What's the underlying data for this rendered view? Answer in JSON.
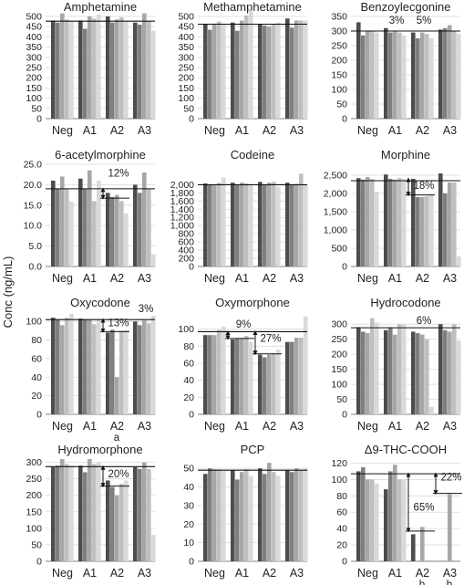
{
  "figure": {
    "ylabel": "Conc (ng/mL)"
  },
  "colors": {
    "shades": [
      "#4d4d4d",
      "#7f7f7f",
      "#a6a6a6",
      "#bfbfbf",
      "#d9d9d9"
    ]
  },
  "chart_data": [
    {
      "type": "bar",
      "title": "Amphetamine",
      "categories": [
        "Neg",
        "A1",
        "A2",
        "A3"
      ],
      "ylim": [
        0,
        500
      ],
      "yticks": [
        "0",
        "50",
        "100",
        "150",
        "200",
        "250",
        "300",
        "350",
        "400",
        "450",
        "500"
      ],
      "ref_line": 477,
      "values": [
        [
          480,
          470,
          515,
          485,
          480
        ],
        [
          480,
          440,
          500,
          490,
          510
        ],
        [
          500,
          470,
          485,
          495,
          475
        ],
        [
          470,
          460,
          515,
          475,
          430
        ]
      ],
      "annotations": []
    },
    {
      "type": "bar",
      "title": "Methamphetamine",
      "categories": [
        "Neg",
        "A1",
        "A2",
        "A3"
      ],
      "ylim": [
        0,
        500
      ],
      "yticks": [
        "0",
        "50",
        "100",
        "150",
        "200",
        "250",
        "300",
        "350",
        "400",
        "450",
        "500"
      ],
      "ref_line": 462,
      "values": [
        [
          460,
          435,
          465,
          475,
          465
        ],
        [
          470,
          430,
          480,
          505,
          530
        ],
        [
          460,
          455,
          450,
          460,
          470
        ],
        [
          490,
          445,
          480,
          480,
          480
        ]
      ],
      "annotations": []
    },
    {
      "type": "bar",
      "title": "Benzoylecgonine",
      "categories": [
        "Neg",
        "A1",
        "A2",
        "A3"
      ],
      "ylim": [
        0,
        350
      ],
      "yticks": [
        "0",
        "50",
        "100",
        "150",
        "200",
        "250",
        "300",
        "350"
      ],
      "ref_line": 300,
      "values": [
        [
          330,
          285,
          300,
          300,
          295
        ],
        [
          310,
          295,
          300,
          295,
          285
        ],
        [
          295,
          275,
          295,
          290,
          275
        ],
        [
          305,
          310,
          320,
          300,
          290
        ]
      ],
      "annotations": [
        {
          "type": "label",
          "text": "3%",
          "cat": 1,
          "y": 325
        },
        {
          "type": "label",
          "text": "5%",
          "cat": 2,
          "y": 325
        }
      ]
    },
    {
      "type": "bar",
      "title": "6-acetylmorphine",
      "categories": [
        "Neg",
        "A1",
        "A2",
        "A3"
      ],
      "ylim": [
        0,
        25
      ],
      "yticks": [
        "0.0",
        "5.0",
        "10.0",
        "15.0",
        "20.0",
        "25.0"
      ],
      "ref_line": 19,
      "values": [
        [
          21,
          19,
          22,
          19,
          15.9
        ],
        [
          21.5,
          19,
          23.5,
          16,
          21
        ],
        [
          18,
          17,
          17.5,
          16,
          13
        ],
        [
          20,
          18,
          23,
          19,
          3
        ]
      ],
      "annotations": [
        {
          "type": "arrow",
          "cat": 2,
          "from": 19,
          "to": 16.7
        },
        {
          "type": "label",
          "text": "12%",
          "cat": 2,
          "y": 22
        }
      ]
    },
    {
      "type": "bar",
      "title": "Codeine",
      "categories": [
        "Neg",
        "A1",
        "A2",
        "A3"
      ],
      "ylim": [
        0,
        2500
      ],
      "yticks": [
        "0",
        "200",
        "400",
        "600",
        "800",
        "1,000",
        "1,200",
        "1,400",
        "1,600",
        "1,800",
        "2,000"
      ],
      "ref_line": 2000,
      "values": [
        [
          2030,
          2000,
          2000,
          2050,
          2180
        ],
        [
          2050,
          2000,
          2050,
          2030,
          2010
        ],
        [
          2070,
          2000,
          2050,
          2070,
          1950
        ],
        [
          2050,
          2000,
          2020,
          2270,
          2000
        ]
      ],
      "annotations": []
    },
    {
      "type": "bar",
      "title": "Morphine",
      "categories": [
        "Neg",
        "A1",
        "A2",
        "A3"
      ],
      "ylim": [
        0,
        2800
      ],
      "yticks": [
        "0",
        "500",
        "1,000",
        "1,500",
        "2,000",
        "2,500"
      ],
      "ref_line": 2350,
      "values": [
        [
          2420,
          2380,
          2450,
          2400,
          2050
        ],
        [
          2520,
          2400,
          2380,
          2420,
          2400
        ],
        [
          2400,
          1900,
          1900,
          1920,
          1980
        ],
        [
          2550,
          2000,
          2300,
          2300,
          280
        ]
      ],
      "annotations": [
        {
          "type": "arrow",
          "cat": 2,
          "from": 2400,
          "to": 1960
        },
        {
          "type": "label",
          "text": "18%",
          "cat": 2,
          "y": 2130
        }
      ]
    },
    {
      "type": "bar",
      "title": "Oxycodone",
      "categories": [
        "Neg",
        "A1",
        "A2",
        "A3"
      ],
      "ylim": [
        0,
        110
      ],
      "yticks": [
        "0",
        "20",
        "40",
        "60",
        "80",
        "100"
      ],
      "ref_line": 102,
      "values": [
        [
          104,
          102,
          96,
          104,
          108
        ],
        [
          103,
          102,
          102,
          97,
          102
        ],
        [
          88,
          91,
          40,
          90,
          91
        ],
        [
          100,
          96,
          101,
          98,
          106
        ]
      ],
      "annotations": [
        {
          "type": "arrow",
          "cat": 2,
          "from": 102,
          "to": 89
        },
        {
          "type": "label",
          "text": "13%",
          "cat": 2,
          "y": 95
        },
        {
          "type": "label",
          "text": "3%",
          "cat": 3,
          "y": 110
        },
        {
          "type": "below",
          "text": "a",
          "cat": 2
        }
      ]
    },
    {
      "type": "bar",
      "title": "Oxymorphone",
      "categories": [
        "Neg",
        "A1",
        "A2",
        "A3"
      ],
      "ylim": [
        0,
        120
      ],
      "yticks": [
        "0",
        "20",
        "40",
        "60",
        "80",
        "100"
      ],
      "ref_line": 97,
      "values": [
        [
          93,
          93,
          93,
          99,
          103
        ],
        [
          88,
          89,
          89,
          92,
          85
        ],
        [
          70,
          67,
          70,
          72,
          76
        ],
        [
          85,
          85,
          90,
          90,
          115
        ]
      ],
      "annotations": [
        {
          "type": "arrow",
          "cat": 1,
          "from": 97,
          "to": 89
        },
        {
          "type": "label",
          "text": "9%",
          "cat": 1,
          "y": 102
        },
        {
          "type": "arrow",
          "cat": 2,
          "from": 97,
          "to": 71
        },
        {
          "type": "label",
          "text": "27%",
          "cat": 2,
          "y": 85
        }
      ]
    },
    {
      "type": "bar",
      "title": "Hydrocodone",
      "categories": [
        "Neg",
        "A1",
        "A2",
        "A3"
      ],
      "ylim": [
        0,
        340
      ],
      "yticks": [
        "0",
        "50",
        "100",
        "150",
        "200",
        "250",
        "300"
      ],
      "ref_line": 288,
      "values": [
        [
          290,
          275,
          270,
          320,
          305
        ],
        [
          280,
          290,
          265,
          300,
          300
        ],
        [
          275,
          270,
          265,
          250,
          25
        ],
        [
          300,
          280,
          275,
          300,
          245
        ]
      ],
      "annotations": [
        {
          "type": "label",
          "text": "6%",
          "cat": 2,
          "y": 300
        }
      ]
    },
    {
      "type": "bar",
      "title": "Hydromorphone",
      "categories": [
        "Neg",
        "A1",
        "A2",
        "A3"
      ],
      "ylim": [
        0,
        310
      ],
      "yticks": [
        "0",
        "50",
        "100",
        "150",
        "200",
        "250",
        "300"
      ],
      "ref_line": 287,
      "values": [
        [
          285,
          290,
          310,
          295,
          290
        ],
        [
          290,
          270,
          310,
          295,
          300
        ],
        [
          245,
          225,
          200,
          235,
          245
        ],
        [
          285,
          280,
          300,
          280,
          80
        ]
      ],
      "annotations": [
        {
          "type": "arrow",
          "cat": 2,
          "from": 287,
          "to": 228
        },
        {
          "type": "label",
          "text": "20%",
          "cat": 2,
          "y": 255
        }
      ]
    },
    {
      "type": "bar",
      "title": "PCP",
      "categories": [
        "Neg",
        "A1",
        "A2",
        "A3"
      ],
      "ylim": [
        0,
        55
      ],
      "yticks": [
        "0",
        "10",
        "20",
        "30",
        "40",
        "50"
      ],
      "ref_line": 49,
      "values": [
        [
          47,
          50,
          49.5,
          49.5,
          49
        ],
        [
          49,
          44,
          48,
          49.5,
          46
        ],
        [
          50,
          47,
          53,
          48,
          46
        ],
        [
          49,
          48,
          50,
          49,
          50
        ]
      ],
      "annotations": []
    },
    {
      "type": "bar",
      "title": "Δ9-THC-COOH",
      "categories": [
        "Neg",
        "A1",
        "A2",
        "A3"
      ],
      "ylim": [
        0,
        125
      ],
      "yticks": [
        "0",
        "20",
        "40",
        "60",
        "80",
        "100",
        "120"
      ],
      "ref_line": 107,
      "values": [
        [
          110,
          115,
          100,
          100,
          95
        ],
        [
          88,
          110,
          118,
          100,
          100
        ],
        [
          33,
          0,
          42,
          0,
          0
        ],
        [
          0,
          0,
          82,
          0,
          0
        ]
      ],
      "annotations": [
        {
          "type": "arrow",
          "cat": 2,
          "from": 107,
          "to": 37
        },
        {
          "type": "label",
          "text": "65%",
          "cat": 2,
          "y": 62
        },
        {
          "type": "arrow",
          "cat": 3,
          "from": 107,
          "to": 83
        },
        {
          "type": "label",
          "text": "22%",
          "cat": 3,
          "y": 99
        },
        {
          "type": "below",
          "text": "b",
          "cat": 2
        },
        {
          "type": "below",
          "text": "b",
          "cat": 3
        }
      ]
    }
  ]
}
